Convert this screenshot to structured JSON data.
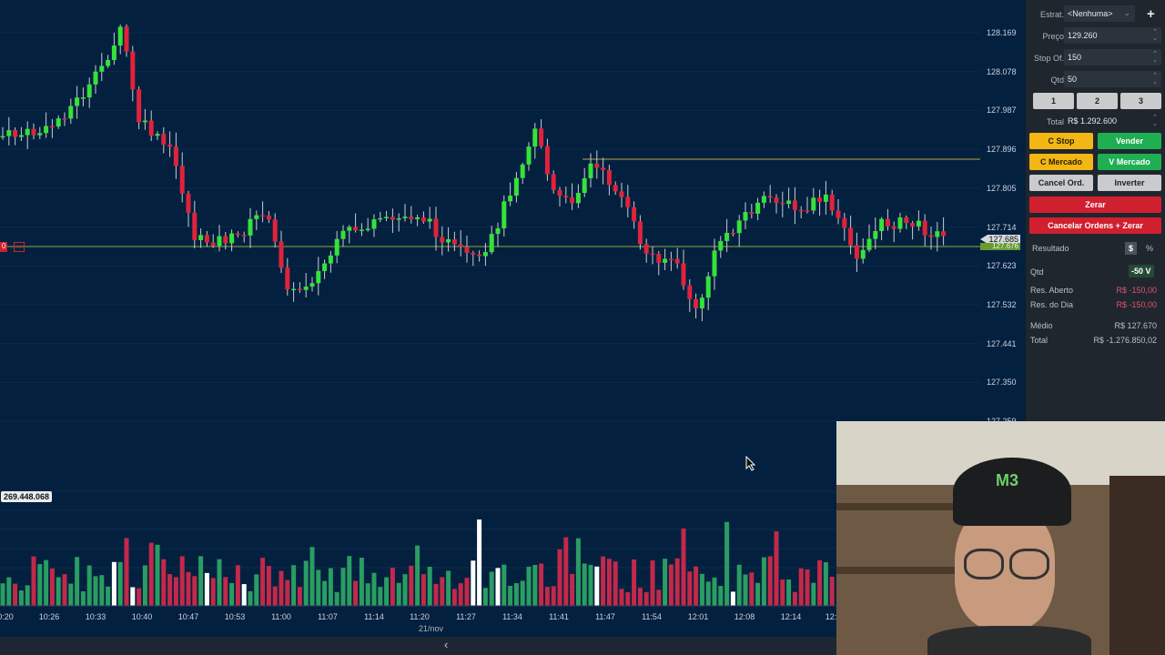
{
  "price_axis": [
    "128.169",
    "128.078",
    "127.987",
    "127.896",
    "127.805",
    "127.714",
    "127.623",
    "127.532",
    "127.441",
    "127.350",
    "127.259"
  ],
  "last_price_marker": "127.685",
  "position_price_marker": "127.676",
  "position_line_label": "0",
  "volume_max_label": "269.448.068",
  "time_axis": [
    "0:20",
    "10:26",
    "10:33",
    "10:40",
    "10:47",
    "10:53",
    "11:00",
    "11:07",
    "11:14",
    "11:20",
    "11:27",
    "11:34",
    "11:41",
    "11:47",
    "11:54",
    "12:01",
    "12:08",
    "12:14",
    "12:"
  ],
  "date_label": "21/nov",
  "scroll_left": "‹",
  "colors": {
    "background": "#04203f",
    "up": "#35e23a",
    "down": "#e0233b",
    "vol_up": "#2a9d62",
    "vol_down": "#c2294a"
  },
  "panel": {
    "estrat_label": "Estrat.",
    "estrat_value": "<Nenhuma>",
    "preco_label": "Preço",
    "preco_value": "129.260",
    "stop_label": "Stop Of.",
    "stop_value": "150",
    "qtd_label": "Qtd",
    "qtd_value": "50",
    "quick": [
      "1",
      "2",
      "3"
    ],
    "total_label": "Total",
    "total_value": "R$ 1.292.600",
    "c_stop": "C Stop",
    "vender": "Vender",
    "c_mercado": "C Mercado",
    "v_mercado": "V Mercado",
    "cancel_ord": "Cancel Ord.",
    "inverter": "Inverter",
    "zerar": "Zerar",
    "cancelar_zerar": "Cancelar Ordens + Zerar",
    "resultado": "Resultado",
    "currency_toggle": "$",
    "percent_toggle": "%",
    "pos_qtd_label": "Qtd",
    "pos_qtd_value": "-50 V",
    "res_aberto_label": "Res. Aberto",
    "res_aberto_value": "R$ -150,00",
    "res_dia_label": "Res. do Dia",
    "res_dia_value": "R$ -150,00",
    "medio_label": "Médio",
    "medio_value": "R$ 127.670",
    "total2_label": "Total",
    "total2_value": "R$ -1.276.850,02"
  }
}
